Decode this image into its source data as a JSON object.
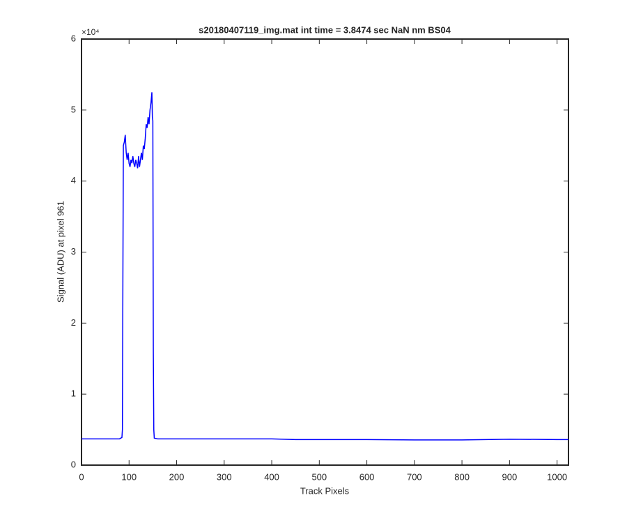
{
  "chart_data": {
    "type": "line",
    "title": "s20180407119_img.mat int time = 3.8474 sec  NaN nm BS04",
    "x_label": "Track Pixels",
    "y_label": "Signal (ADU) at pixel 961",
    "y_multiplier": "×10⁴",
    "x": [
      0,
      40,
      80,
      85,
      86,
      87,
      88,
      90,
      92,
      94,
      96,
      98,
      100,
      102,
      104,
      106,
      108,
      110,
      112,
      114,
      116,
      118,
      120,
      122,
      124,
      126,
      128,
      130,
      132,
      134,
      136,
      138,
      140,
      142,
      144,
      146,
      148,
      149,
      150,
      151,
      152,
      153,
      160,
      200,
      300,
      400,
      450,
      500,
      600,
      700,
      800,
      900,
      1000,
      1024
    ],
    "series": [
      {
        "color": "#0000ff",
        "values": [
          3700,
          3700,
          3700,
          3900,
          5000,
          26000,
          45000,
          45500,
          46500,
          44000,
          43000,
          44000,
          42500,
          42000,
          43000,
          42500,
          43500,
          42500,
          42000,
          43000,
          42500,
          41800,
          43500,
          42000,
          43000,
          44000,
          43000,
          45000,
          44500,
          46000,
          48000,
          47500,
          49000,
          48000,
          50000,
          51000,
          52500,
          49000,
          48500,
          16000,
          5000,
          3800,
          3700,
          3700,
          3700,
          3700,
          3600,
          3600,
          3600,
          3550,
          3550,
          3650,
          3600,
          3600
        ]
      }
    ],
    "xlim": [
      0,
      1024
    ],
    "xticks": [
      0,
      100,
      200,
      300,
      400,
      500,
      600,
      700,
      800,
      900,
      1000
    ],
    "ylim": [
      0,
      60000
    ],
    "yticks": [
      {
        "value": 0,
        "label": "0"
      },
      {
        "value": 10000,
        "label": "1"
      },
      {
        "value": 20000,
        "label": "2"
      },
      {
        "value": 30000,
        "label": "3"
      },
      {
        "value": 40000,
        "label": "4"
      },
      {
        "value": 50000,
        "label": "5"
      },
      {
        "value": 60000,
        "label": "6"
      }
    ]
  }
}
